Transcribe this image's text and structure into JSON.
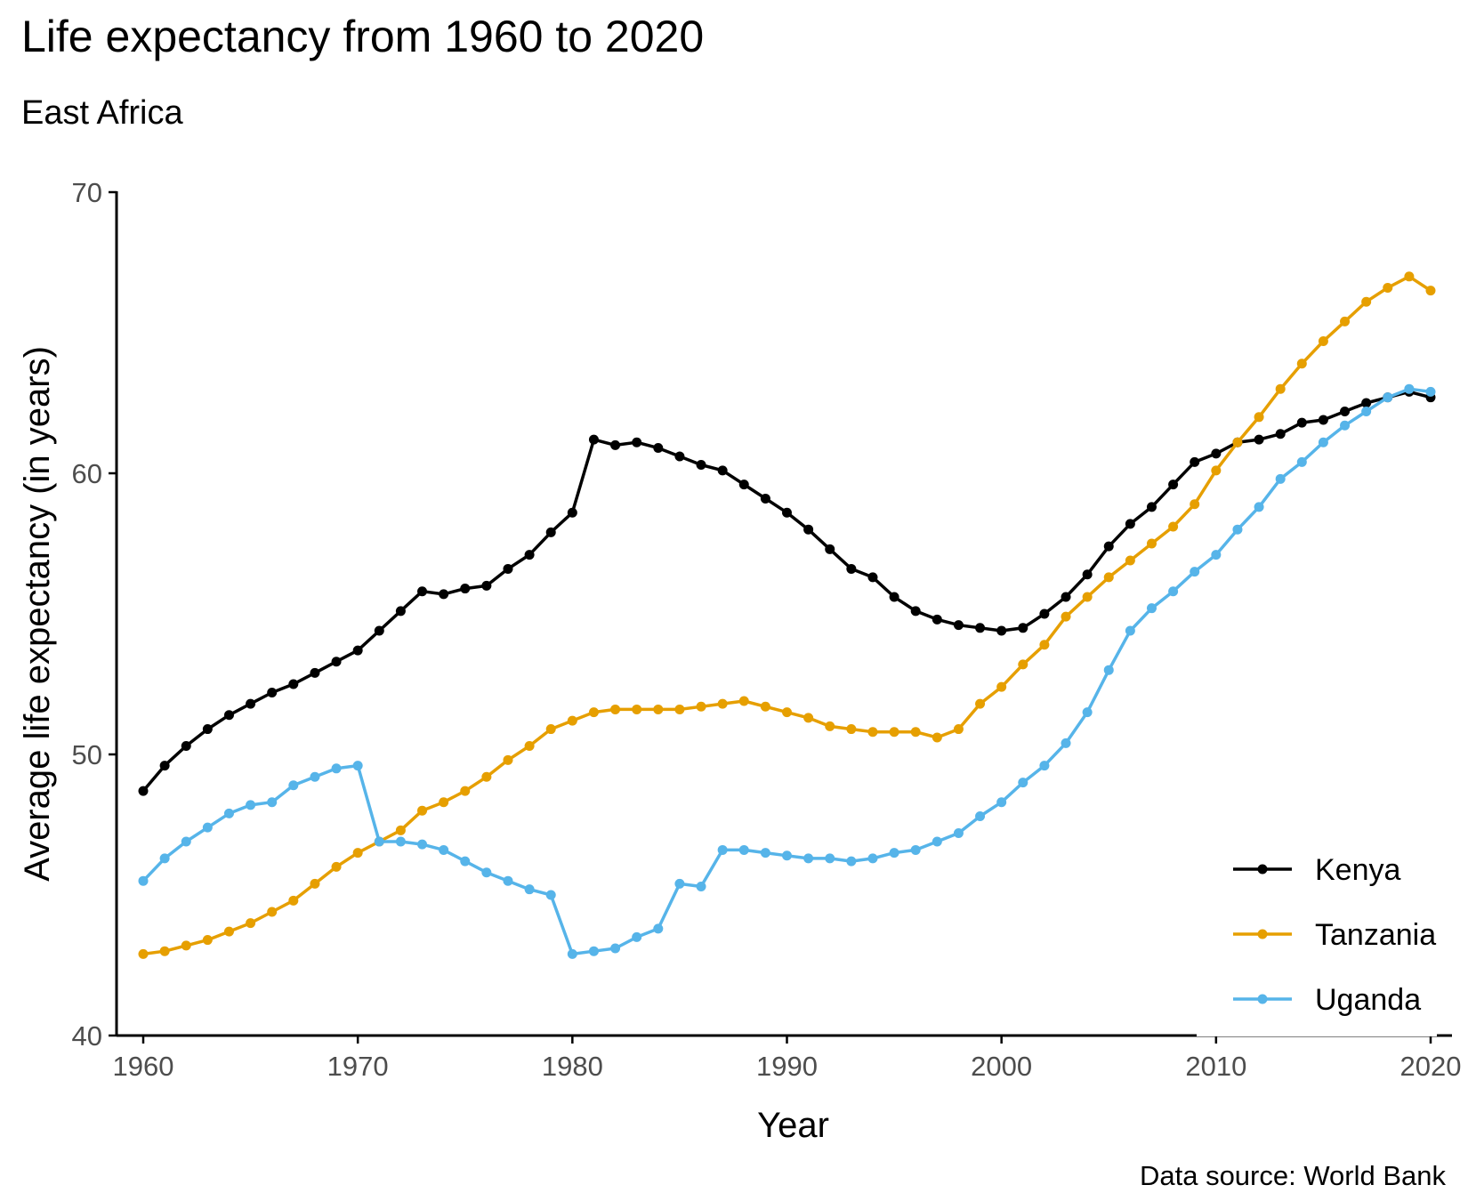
{
  "chart_data": {
    "type": "line",
    "title": "Life expectancy from 1960 to 2020",
    "subtitle": "East Africa",
    "xlabel": "Year",
    "ylabel": "Average life expectancy (in years)",
    "caption": "Data source: World Bank",
    "xlim": [
      1960,
      2020
    ],
    "ylim": [
      40,
      70
    ],
    "x_ticks": [
      1960,
      1970,
      1980,
      1990,
      2000,
      2010,
      2020
    ],
    "y_ticks": [
      40,
      50,
      60,
      70
    ],
    "grid": false,
    "legend_position": "bottom-right",
    "x": [
      1960,
      1961,
      1962,
      1963,
      1964,
      1965,
      1966,
      1967,
      1968,
      1969,
      1970,
      1971,
      1972,
      1973,
      1974,
      1975,
      1976,
      1977,
      1978,
      1979,
      1980,
      1981,
      1982,
      1983,
      1984,
      1985,
      1986,
      1987,
      1988,
      1989,
      1990,
      1991,
      1992,
      1993,
      1994,
      1995,
      1996,
      1997,
      1998,
      1999,
      2000,
      2001,
      2002,
      2003,
      2004,
      2005,
      2006,
      2007,
      2008,
      2009,
      2010,
      2011,
      2012,
      2013,
      2014,
      2015,
      2016,
      2017,
      2018,
      2019,
      2020
    ],
    "series": [
      {
        "name": "Kenya",
        "color": "#000000",
        "values": [
          48.7,
          49.6,
          50.3,
          50.9,
          51.4,
          51.8,
          52.2,
          52.5,
          52.9,
          53.3,
          53.7,
          54.4,
          55.1,
          55.8,
          55.7,
          55.9,
          56.0,
          56.6,
          57.1,
          57.9,
          58.6,
          61.2,
          61.0,
          61.1,
          60.9,
          60.6,
          60.3,
          60.1,
          59.6,
          59.1,
          58.6,
          58.0,
          57.3,
          56.6,
          56.3,
          55.6,
          55.1,
          54.8,
          54.6,
          54.5,
          54.4,
          54.5,
          55.0,
          55.6,
          56.4,
          57.4,
          58.2,
          58.8,
          59.6,
          60.4,
          60.7,
          61.1,
          61.2,
          61.4,
          61.8,
          61.9,
          62.2,
          62.5,
          62.7,
          62.9,
          62.7
        ]
      },
      {
        "name": "Tanzania",
        "color": "#e69f00",
        "values": [
          42.9,
          43.0,
          43.2,
          43.4,
          43.7,
          44.0,
          44.4,
          44.8,
          45.4,
          46.0,
          46.5,
          46.9,
          47.3,
          48.0,
          48.3,
          48.7,
          49.2,
          49.8,
          50.3,
          50.9,
          51.2,
          51.5,
          51.6,
          51.6,
          51.6,
          51.6,
          51.7,
          51.8,
          51.9,
          51.7,
          51.5,
          51.3,
          51.0,
          50.9,
          50.8,
          50.8,
          50.8,
          50.6,
          50.9,
          51.8,
          52.4,
          53.2,
          53.9,
          54.9,
          55.6,
          56.3,
          56.9,
          57.5,
          58.1,
          58.9,
          60.1,
          61.1,
          62.0,
          63.0,
          63.9,
          64.7,
          65.4,
          66.1,
          66.6,
          67.0,
          66.5
        ]
      },
      {
        "name": "Uganda",
        "color": "#56b4e9",
        "values": [
          45.5,
          46.3,
          46.9,
          47.4,
          47.9,
          48.2,
          48.3,
          48.9,
          49.2,
          49.5,
          49.6,
          46.9,
          46.9,
          46.8,
          46.6,
          46.2,
          45.8,
          45.5,
          45.2,
          45.0,
          42.9,
          43.0,
          43.1,
          43.5,
          43.8,
          45.4,
          45.3,
          46.6,
          46.6,
          46.5,
          46.4,
          46.3,
          46.3,
          46.2,
          46.3,
          46.5,
          46.6,
          46.9,
          47.2,
          47.8,
          48.3,
          49.0,
          49.6,
          50.4,
          51.5,
          53.0,
          54.4,
          55.2,
          55.8,
          56.5,
          57.1,
          58.0,
          58.8,
          59.8,
          60.4,
          61.1,
          61.7,
          62.2,
          62.7,
          63.0,
          62.9
        ]
      }
    ]
  }
}
